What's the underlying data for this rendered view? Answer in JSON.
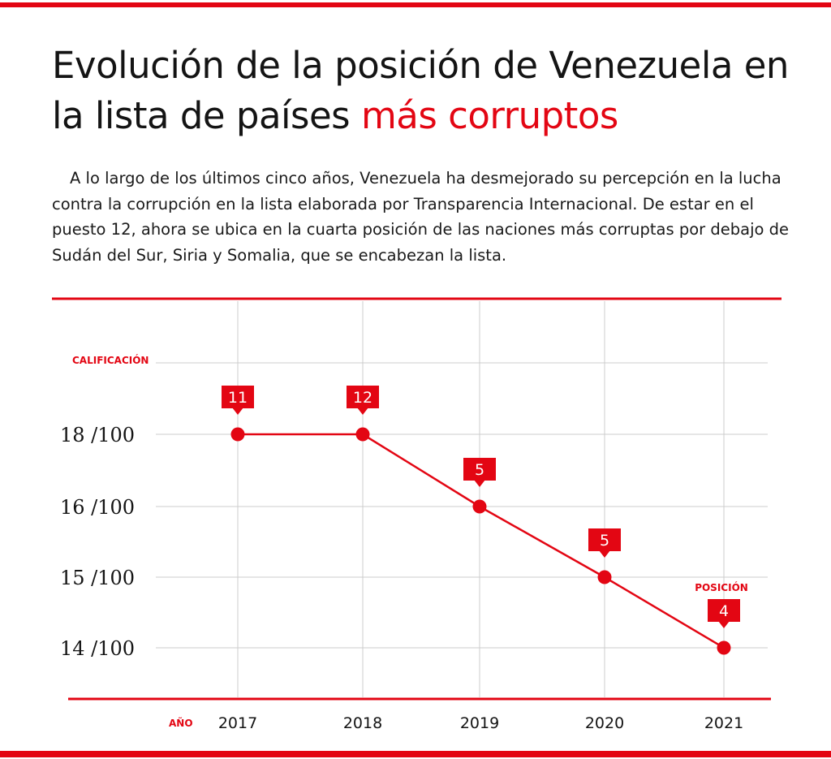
{
  "header": {
    "title_main": "Evolución de la posición de Venezuela en la lista de países",
    "title_accent": "más corruptos",
    "intro": "A lo largo de los últimos cinco años, Venezuela ha desmejorado su percepción en la lucha contra la corrupción en la lista elaborada por Transparencia Internacional. De estar en el puesto 12, ahora se ubica en la cuarta posición de las naciones más corruptas por debajo de Sudán del Sur, Siria y Somalia, que se encabezan la lista."
  },
  "colors": {
    "accent": "#e30613",
    "grid": "#cccccc",
    "text": "#141414"
  },
  "chart_data": {
    "type": "line",
    "ylabel": "CALIFICACIÓN",
    "xlabel": "AÑO",
    "position_label": "POSICIÓN",
    "x": [
      "2017",
      "2018",
      "2019",
      "2020",
      "2021"
    ],
    "y_ticks": [
      {
        "value": 18,
        "label": "18 /100"
      },
      {
        "value": 16,
        "label": "16 /100"
      },
      {
        "value": 15,
        "label": "15 /100"
      },
      {
        "value": 14,
        "label": "14 /100"
      }
    ],
    "series": [
      {
        "values": [
          18,
          18,
          16,
          15,
          14
        ],
        "positions": [
          "11",
          "12",
          "5",
          "5",
          "4"
        ]
      }
    ]
  }
}
